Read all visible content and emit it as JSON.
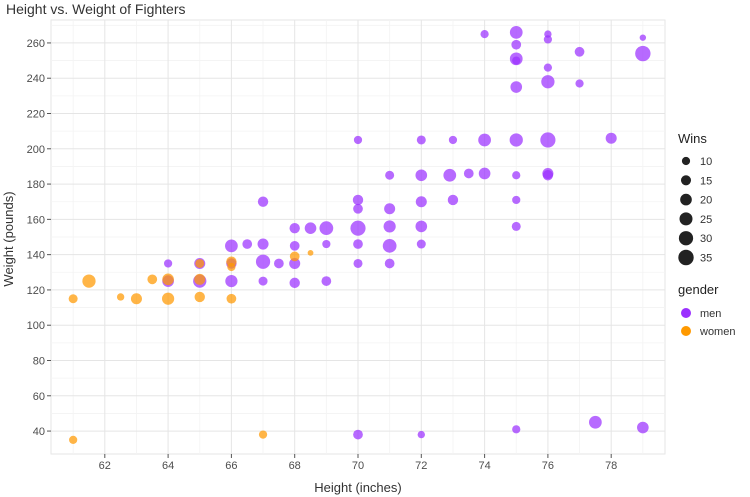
{
  "chart_data": {
    "type": "scatter",
    "title": "Height vs. Weight of Fighters",
    "xlabel": "Height (inches)",
    "ylabel": "Weight (pounds)",
    "xlim": [
      60.3,
      79.7
    ],
    "ylim": [
      27,
      273
    ],
    "xticks": [
      62,
      64,
      66,
      68,
      70,
      72,
      74,
      76,
      78
    ],
    "yticks": [
      40,
      60,
      80,
      100,
      120,
      140,
      160,
      180,
      200,
      220,
      240,
      260
    ],
    "grid": true,
    "size_legend": {
      "title": "Wins",
      "values": [
        10,
        15,
        20,
        25,
        30,
        35
      ]
    },
    "color_legend": {
      "title": "gender",
      "entries": [
        {
          "label": "men",
          "color": "#9b30ff"
        },
        {
          "label": "women",
          "color": "#ff9900"
        }
      ]
    },
    "series": [
      {
        "name": "men",
        "color": "#9b30ff",
        "points": [
          {
            "x": 64,
            "y": 135,
            "wins": 10
          },
          {
            "x": 64,
            "y": 125,
            "wins": 20
          },
          {
            "x": 65,
            "y": 135,
            "wins": 18
          },
          {
            "x": 65,
            "y": 125,
            "wins": 26
          },
          {
            "x": 66,
            "y": 145,
            "wins": 24
          },
          {
            "x": 66,
            "y": 135,
            "wins": 16
          },
          {
            "x": 66,
            "y": 125,
            "wins": 22
          },
          {
            "x": 66.5,
            "y": 146,
            "wins": 14
          },
          {
            "x": 67,
            "y": 170,
            "wins": 16
          },
          {
            "x": 67,
            "y": 146,
            "wins": 18
          },
          {
            "x": 67,
            "y": 136,
            "wins": 30
          },
          {
            "x": 67,
            "y": 125,
            "wins": 12
          },
          {
            "x": 67.5,
            "y": 135,
            "wins": 14
          },
          {
            "x": 68,
            "y": 155,
            "wins": 16
          },
          {
            "x": 68,
            "y": 145,
            "wins": 14
          },
          {
            "x": 68,
            "y": 135,
            "wins": 18
          },
          {
            "x": 68,
            "y": 124,
            "wins": 16
          },
          {
            "x": 68.5,
            "y": 155,
            "wins": 20
          },
          {
            "x": 69,
            "y": 155,
            "wins": 28
          },
          {
            "x": 69,
            "y": 146,
            "wins": 10
          },
          {
            "x": 69,
            "y": 125,
            "wins": 14
          },
          {
            "x": 70,
            "y": 205,
            "wins": 10
          },
          {
            "x": 70,
            "y": 171,
            "wins": 16
          },
          {
            "x": 70,
            "y": 166,
            "wins": 14
          },
          {
            "x": 70,
            "y": 155,
            "wins": 34
          },
          {
            "x": 70,
            "y": 146,
            "wins": 14
          },
          {
            "x": 70,
            "y": 135,
            "wins": 12
          },
          {
            "x": 70,
            "y": 38,
            "wins": 14
          },
          {
            "x": 71,
            "y": 185,
            "wins": 12
          },
          {
            "x": 71,
            "y": 166,
            "wins": 18
          },
          {
            "x": 71,
            "y": 156,
            "wins": 22
          },
          {
            "x": 71,
            "y": 145,
            "wins": 28
          },
          {
            "x": 71,
            "y": 135,
            "wins": 14
          },
          {
            "x": 72,
            "y": 205,
            "wins": 12
          },
          {
            "x": 72,
            "y": 185,
            "wins": 20
          },
          {
            "x": 72,
            "y": 170,
            "wins": 18
          },
          {
            "x": 72,
            "y": 156,
            "wins": 20
          },
          {
            "x": 72,
            "y": 146,
            "wins": 12
          },
          {
            "x": 72,
            "y": 38,
            "wins": 8
          },
          {
            "x": 72.9,
            "y": 185,
            "wins": 24
          },
          {
            "x": 73,
            "y": 205,
            "wins": 10
          },
          {
            "x": 73,
            "y": 171,
            "wins": 16
          },
          {
            "x": 73.5,
            "y": 186,
            "wins": 14
          },
          {
            "x": 74,
            "y": 265,
            "wins": 10
          },
          {
            "x": 74,
            "y": 205,
            "wins": 24
          },
          {
            "x": 74,
            "y": 186,
            "wins": 20
          },
          {
            "x": 75,
            "y": 266,
            "wins": 24
          },
          {
            "x": 75,
            "y": 259,
            "wins": 14
          },
          {
            "x": 75,
            "y": 251,
            "wins": 24
          },
          {
            "x": 75,
            "y": 250,
            "wins": 10
          },
          {
            "x": 75,
            "y": 235,
            "wins": 20
          },
          {
            "x": 75,
            "y": 205,
            "wins": 26
          },
          {
            "x": 75,
            "y": 185,
            "wins": 10
          },
          {
            "x": 75,
            "y": 171,
            "wins": 10
          },
          {
            "x": 75,
            "y": 156,
            "wins": 12
          },
          {
            "x": 75,
            "y": 41,
            "wins": 10
          },
          {
            "x": 76,
            "y": 265,
            "wins": 8
          },
          {
            "x": 76,
            "y": 262,
            "wins": 10
          },
          {
            "x": 76,
            "y": 246,
            "wins": 10
          },
          {
            "x": 76,
            "y": 238,
            "wins": 26
          },
          {
            "x": 76,
            "y": 205,
            "wins": 34
          },
          {
            "x": 76,
            "y": 186,
            "wins": 18
          },
          {
            "x": 76,
            "y": 185,
            "wins": 16
          },
          {
            "x": 77,
            "y": 255,
            "wins": 14
          },
          {
            "x": 77,
            "y": 237,
            "wins": 10
          },
          {
            "x": 77.5,
            "y": 45,
            "wins": 24
          },
          {
            "x": 78,
            "y": 206,
            "wins": 18
          },
          {
            "x": 79,
            "y": 263,
            "wins": 6
          },
          {
            "x": 79,
            "y": 254,
            "wins": 35
          },
          {
            "x": 79,
            "y": 42,
            "wins": 20
          }
        ]
      },
      {
        "name": "women",
        "color": "#ff9900",
        "points": [
          {
            "x": 61,
            "y": 115,
            "wins": 12
          },
          {
            "x": 61,
            "y": 35,
            "wins": 10
          },
          {
            "x": 61.5,
            "y": 125,
            "wins": 26
          },
          {
            "x": 62.5,
            "y": 116,
            "wins": 8
          },
          {
            "x": 63,
            "y": 115,
            "wins": 18
          },
          {
            "x": 63.5,
            "y": 126,
            "wins": 14
          },
          {
            "x": 64,
            "y": 126,
            "wins": 20
          },
          {
            "x": 64,
            "y": 115,
            "wins": 22
          },
          {
            "x": 65,
            "y": 135,
            "wins": 12
          },
          {
            "x": 65,
            "y": 126,
            "wins": 18
          },
          {
            "x": 65,
            "y": 116,
            "wins": 16
          },
          {
            "x": 66,
            "y": 136,
            "wins": 16
          },
          {
            "x": 66,
            "y": 133,
            "wins": 10
          },
          {
            "x": 66,
            "y": 115,
            "wins": 14
          },
          {
            "x": 67,
            "y": 38,
            "wins": 10
          },
          {
            "x": 68,
            "y": 139,
            "wins": 14
          },
          {
            "x": 68.5,
            "y": 141,
            "wins": 5
          }
        ]
      }
    ]
  }
}
